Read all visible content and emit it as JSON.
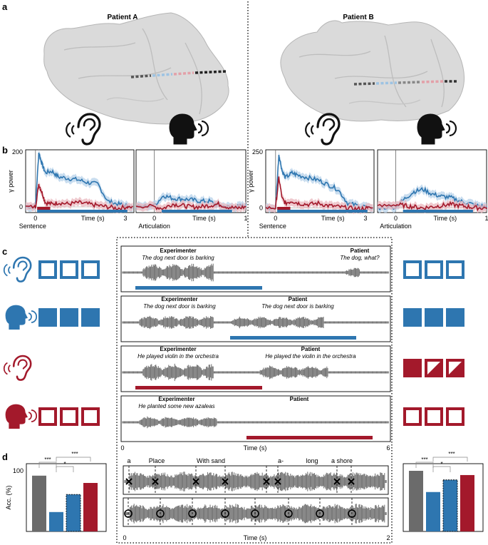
{
  "panel_labels": {
    "a": "a",
    "b": "b",
    "c": "c",
    "d": "d"
  },
  "panel_a": {
    "left_title": "Patient A",
    "right_title": "Patient B"
  },
  "icons": {
    "listen": "ear-icon",
    "speak": "speaking-head-icon"
  },
  "colors": {
    "blue": "#2e76b0",
    "red": "#a3192b",
    "gray": "#6b6b6b",
    "light_blue": "#b7d2ea",
    "light_red": "#eab8bf"
  },
  "panel_b": {
    "patient_a": {
      "ylabel": "γ power",
      "ymax_label": "200",
      "yzero_label": "0",
      "listen_xlabel": "Time (s)",
      "listen_x0": "0",
      "listen_xmax": "3",
      "listen_event": "Sentence",
      "speak_xlabel": "Time (s)",
      "speak_x0": "0",
      "speak_xmax": "1",
      "speak_event": "Articulation"
    },
    "patient_b": {
      "ylabel": "γ power",
      "ymax_label": "250",
      "yzero_label": "0",
      "listen_xlabel": "Time (s)",
      "listen_x0": "0",
      "listen_xmax": "3",
      "listen_event": "Sentence",
      "speak_xlabel": "Time (s)",
      "speak_x0": "0",
      "speak_xmax": "1",
      "speak_event": "Articulation"
    }
  },
  "panel_c": {
    "trials": [
      {
        "left_speaker": "Experimenter",
        "left_text": "The dog next door is barking",
        "right_speaker": "Patient",
        "right_text": "The dog, what?"
      },
      {
        "left_speaker": "Experimenter",
        "left_text": "The dog next door is barking",
        "right_speaker": "Patient",
        "right_text": "The dog next door is barking"
      },
      {
        "left_speaker": "Experimenter",
        "left_text": "He played violin in the orchestra",
        "right_speaker": "Patient",
        "right_text": "He played the violin in the orchestra"
      },
      {
        "left_speaker": "Experimenter",
        "left_text": "He planted some new azaleas",
        "right_speaker": "Patient",
        "right_text": ""
      }
    ],
    "x0": "0",
    "xmax": "6",
    "xlabel": "Time (s)"
  },
  "panel_d": {
    "ylabel": "Acc. (%)",
    "ytick": "100",
    "sig_outer": "***",
    "sig_mid": "*",
    "sig_wide": "***",
    "words": [
      "a",
      "Place",
      "With sand",
      "a-",
      "long",
      "a shore"
    ],
    "x0": "0",
    "xmax": "2",
    "xlabel": "Time (s)"
  },
  "chart_data": [
    {
      "type": "line",
      "title": "",
      "panel": "b, Patient A, listening",
      "x": [
        0,
        0.1,
        0.2,
        0.3,
        0.5,
        0.7,
        1.0,
        1.3,
        1.6,
        1.9,
        2.2,
        2.5,
        2.8
      ],
      "series": [
        {
          "values": [
            0,
            190,
            150,
            120,
            125,
            105,
            100,
            95,
            85,
            80,
            20,
            10,
            5
          ]
        },
        {
          "values": [
            0,
            80,
            50,
            15,
            10,
            15,
            10,
            15,
            10,
            5,
            0,
            -5,
            0
          ]
        }
      ],
      "xlim": [
        -0.3,
        3
      ],
      "ylim": [
        -20,
        200
      ]
    },
    {
      "type": "line",
      "title": "",
      "panel": "b, Patient A, speaking",
      "x": [
        -0.2,
        0,
        0.1,
        0.2,
        0.3,
        0.4,
        0.5,
        0.6,
        0.7,
        0.8,
        0.9,
        1.0
      ],
      "series": [
        {
          "values": [
            0,
            5,
            40,
            30,
            28,
            25,
            20,
            20,
            5,
            0,
            0,
            5
          ]
        },
        {
          "values": [
            5,
            0,
            -5,
            10,
            5,
            0,
            0,
            5,
            10,
            0,
            -5,
            0
          ]
        }
      ],
      "xlim": [
        -0.2,
        1
      ],
      "ylim": [
        -20,
        200
      ]
    },
    {
      "type": "line",
      "title": "",
      "panel": "b, Patient B, listening",
      "x": [
        0,
        0.1,
        0.2,
        0.3,
        0.5,
        0.7,
        1.0,
        1.3,
        1.6,
        1.9,
        2.2,
        2.5,
        2.8
      ],
      "series": [
        {
          "values": [
            0,
            230,
            160,
            130,
            150,
            140,
            130,
            120,
            100,
            80,
            20,
            10,
            5
          ]
        },
        {
          "values": [
            0,
            130,
            40,
            20,
            30,
            20,
            15,
            20,
            10,
            5,
            0,
            -5,
            0
          ]
        }
      ],
      "xlim": [
        -0.3,
        3
      ],
      "ylim": [
        -20,
        250
      ]
    },
    {
      "type": "line",
      "title": "",
      "panel": "b, Patient B, speaking",
      "x": [
        -0.2,
        0,
        0.1,
        0.2,
        0.3,
        0.4,
        0.5,
        0.6,
        0.7,
        0.8,
        0.9,
        1.0
      ],
      "series": [
        {
          "values": [
            0,
            5,
            40,
            70,
            80,
            60,
            50,
            45,
            30,
            20,
            10,
            5
          ]
        },
        {
          "values": [
            5,
            15,
            10,
            5,
            0,
            5,
            10,
            15,
            10,
            5,
            0,
            0
          ]
        }
      ],
      "xlim": [
        -0.2,
        1
      ],
      "ylim": [
        -20,
        250
      ]
    },
    {
      "type": "bar",
      "title": "",
      "panel": "d, Patient A accuracy",
      "categories": [
        "",
        "",
        "",
        ""
      ],
      "values": [
        92,
        32,
        61,
        80
      ],
      "ylabel": "Acc. (%)",
      "ylim": [
        0,
        100
      ]
    },
    {
      "type": "bar",
      "title": "",
      "panel": "d, Patient B accuracy",
      "categories": [
        "",
        "",
        "",
        ""
      ],
      "values": [
        100,
        65,
        85,
        93
      ],
      "ylim": [
        0,
        100
      ]
    }
  ]
}
